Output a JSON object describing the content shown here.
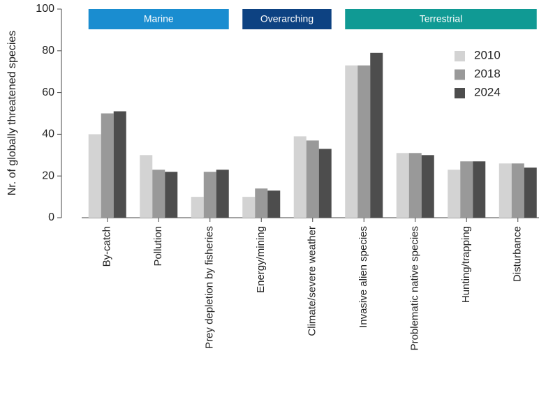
{
  "chart_data": {
    "type": "bar",
    "y_label": "Nr. of globally threatened species",
    "categories": [
      "By-catch",
      "Pollution",
      "Prey depletion by fisheries",
      "Energy/mining",
      "Climate/severe weather",
      "Invasive alien species",
      "Problematic native species",
      "Hunting/trapping",
      "Disturbance"
    ],
    "series": [
      {
        "name": "2010",
        "color": "#d3d3d3",
        "values": [
          40,
          30,
          10,
          10,
          39,
          73,
          31,
          23,
          26
        ]
      },
      {
        "name": "2018",
        "color": "#999999",
        "values": [
          50,
          23,
          22,
          14,
          37,
          73,
          31,
          27,
          26
        ]
      },
      {
        "name": "2024",
        "color": "#4d4d4d",
        "values": [
          51,
          22,
          23,
          13,
          33,
          79,
          30,
          27,
          24
        ]
      }
    ],
    "groups": [
      {
        "name": "Marine",
        "color": "#1a8dd0",
        "categories": [
          "By-catch",
          "Pollution",
          "Prey depletion by fisheries"
        ]
      },
      {
        "name": "Overarching",
        "color": "#0d4282",
        "categories": [
          "Energy/mining",
          "Climate/severe weather"
        ]
      },
      {
        "name": "Terrestrial",
        "color": "#109a94",
        "categories": [
          "Invasive alien species",
          "Problematic native species",
          "Hunting/trapping",
          "Disturbance"
        ]
      }
    ],
    "ylim": [
      0,
      100
    ],
    "yticks": [
      0,
      20,
      40,
      60,
      80,
      100
    ],
    "legend": "top-right"
  }
}
